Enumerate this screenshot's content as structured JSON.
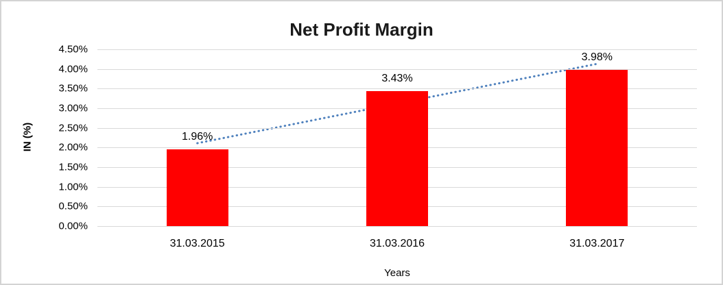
{
  "chart_data": {
    "type": "bar",
    "title": "Net Profit Margin",
    "xlabel": "Years",
    "ylabel": "IN (%)",
    "categories": [
      "31.03.2015",
      "31.03.2016",
      "31.03.2017"
    ],
    "values": [
      1.96,
      3.43,
      3.98
    ],
    "data_labels": [
      "1.96%",
      "3.43%",
      "3.98%"
    ],
    "y_ticks": [
      "0.00%",
      "0.50%",
      "1.00%",
      "1.50%",
      "2.00%",
      "2.50%",
      "3.00%",
      "3.50%",
      "4.00%",
      "4.50%"
    ],
    "ylim": [
      0,
      4.5
    ],
    "y_tick_step": 0.5,
    "grid": true,
    "legend_position": "none",
    "bar_color": "#ff0000",
    "gridline_color": "#d9d9d9",
    "border_color": "#d3d3d3",
    "text_color": "#000000",
    "trendline": {
      "style": "dotted",
      "color": "#4f81bd",
      "start_value": 2.11,
      "end_value": 4.13
    }
  }
}
